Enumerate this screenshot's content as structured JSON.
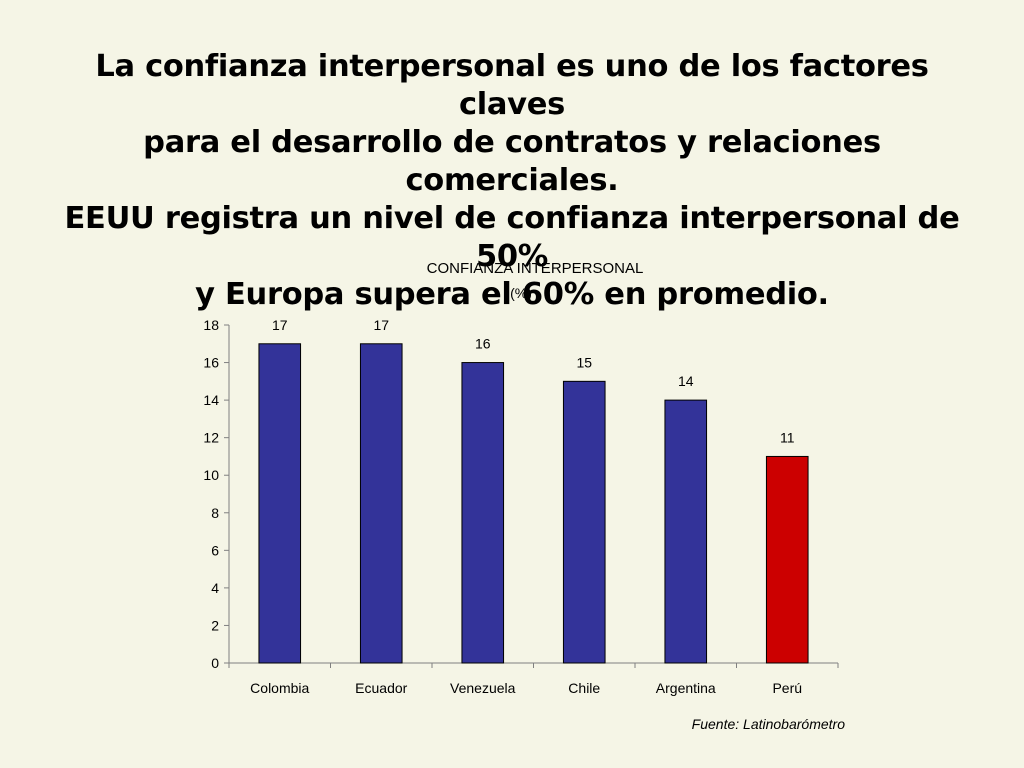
{
  "slide": {
    "title_lines": [
      "La confianza interpersonal es uno de los factores claves",
      "para el desarrollo de contratos y relaciones comerciales.",
      "EEUU registra un nivel de confianza interpersonal de 50%",
      "y Europa supera el 60% en promedio."
    ],
    "source": "Fuente: Latinobarómetro"
  },
  "chart_data": {
    "type": "bar",
    "title": "CONFIANZA INTERPERSONAL",
    "subtitle": "(%)",
    "categories": [
      "Colombia",
      "Ecuador",
      "Venezuela",
      "Chile",
      "Argentina",
      "Perú"
    ],
    "values": [
      17,
      17,
      16,
      15,
      14,
      11
    ],
    "bar_colors": [
      "#333399",
      "#333399",
      "#333399",
      "#333399",
      "#333399",
      "#cc0000"
    ],
    "ylim": [
      0,
      18
    ],
    "yticks": [
      0,
      2,
      4,
      6,
      8,
      10,
      12,
      14,
      16,
      18
    ],
    "xlabel": "",
    "ylabel": "",
    "grid": false,
    "data_labels": true
  }
}
